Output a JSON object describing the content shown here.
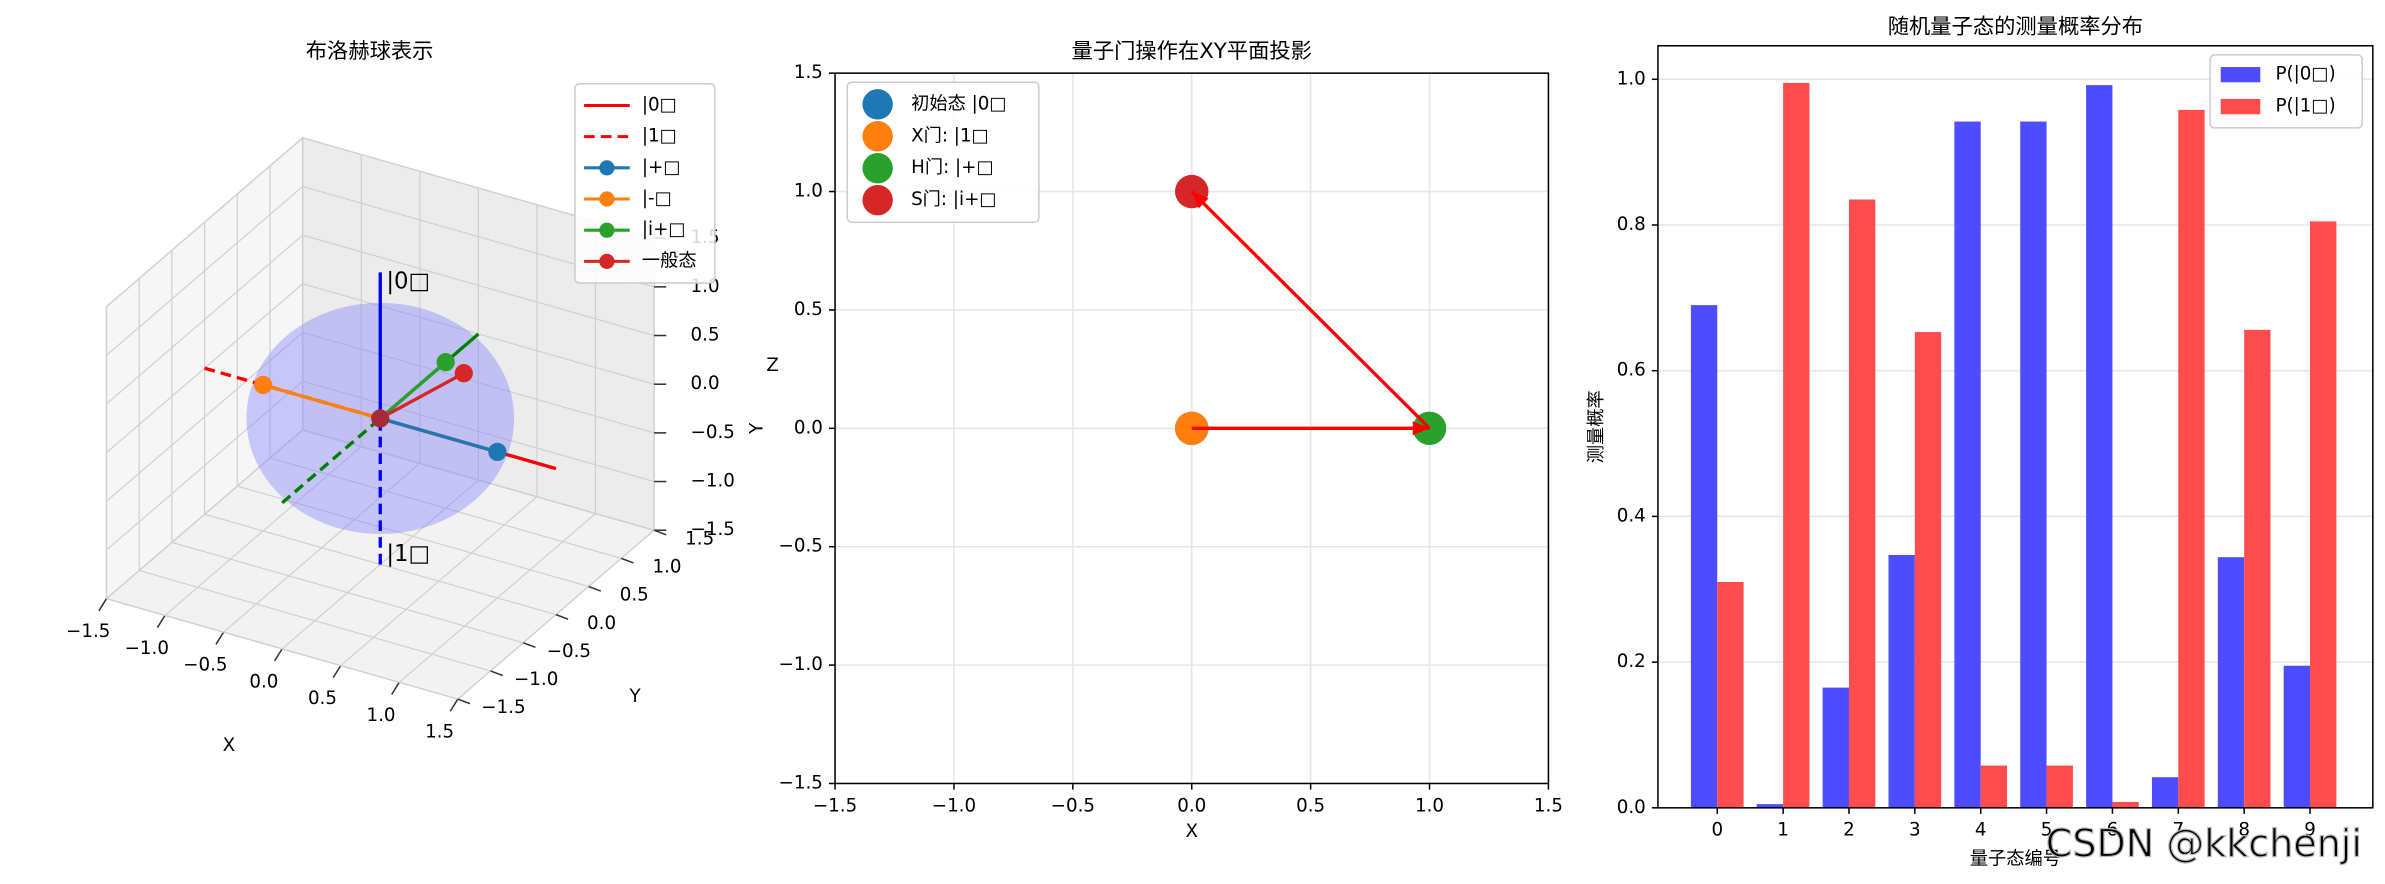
{
  "chart_data": [
    {
      "type": "bloch3d",
      "title": "布洛赫球表示",
      "xlabel": "X",
      "ylabel": "Y",
      "zlabel": "Z",
      "xlim": [
        -1.5,
        1.5
      ],
      "ylim": [
        -1.5,
        1.5
      ],
      "zlim": [
        -1.5,
        1.5
      ],
      "xticks": [
        {
          "value": -1.5,
          "label": "−1.5"
        },
        {
          "value": -1.0,
          "label": "−1.0"
        },
        {
          "value": -0.5,
          "label": "−0.5"
        },
        {
          "value": 0,
          "label": "0.0"
        },
        0.5,
        {
          "value": 1,
          "label": "1.0"
        },
        1.5
      ],
      "yticks": [
        {
          "value": -1.5,
          "label": "−1.5"
        },
        {
          "value": -1.0,
          "label": "−1.0"
        },
        {
          "value": -0.5,
          "label": "−0.5"
        },
        {
          "value": 0,
          "label": "0.0"
        },
        0.5,
        {
          "value": 1,
          "label": "1.0"
        },
        1.5
      ],
      "zticks": [
        {
          "value": -1.5,
          "label": "−1.5"
        },
        {
          "value": -1.0,
          "label": "−1.0"
        },
        {
          "value": -0.5,
          "label": "−0.5"
        },
        {
          "value": 0,
          "label": "0.0"
        },
        0.5,
        {
          "value": 1,
          "label": "1.0"
        },
        1.5
      ],
      "sphere_color": "#8080ff",
      "legend": "upper right",
      "series": [
        {
          "name": "|0□",
          "color": "#ff0000",
          "linestyle": "solid",
          "marker": false,
          "x": [
            0,
            1.5
          ],
          "y": [
            0,
            0
          ],
          "z": [
            0,
            0
          ]
        },
        {
          "name": "|1□",
          "color": "#ff0000",
          "linestyle": "dashed",
          "marker": false,
          "x": [
            -1.5,
            0
          ],
          "y": [
            0,
            0
          ],
          "z": [
            0,
            0
          ]
        },
        {
          "name": "|+□",
          "color": "#1f77b4",
          "linestyle": "solid",
          "marker": true,
          "x": [
            0,
            1
          ],
          "y": [
            0,
            0
          ],
          "z": [
            0,
            0
          ]
        },
        {
          "name": "|-□",
          "color": "#ff7f0e",
          "linestyle": "solid",
          "marker": true,
          "x": [
            0,
            -1
          ],
          "y": [
            0,
            0
          ],
          "z": [
            0,
            0
          ]
        },
        {
          "name": "|i+□",
          "color": "#2ca02c",
          "linestyle": "solid",
          "marker": true,
          "x": [
            0,
            0
          ],
          "y": [
            0,
            1
          ],
          "z": [
            0,
            0
          ]
        },
        {
          "name": "一般态",
          "color": "#d62728",
          "linestyle": "solid",
          "marker": true,
          "x": [
            0,
            0.3
          ],
          "y": [
            0,
            0.74
          ],
          "z": [
            0,
            0.14
          ]
        }
      ],
      "axis_lines": [
        {
          "color": "#008000",
          "linestyle": "solid",
          "x": [
            0,
            0
          ],
          "y": [
            0,
            1.5
          ],
          "z": [
            0,
            0
          ]
        },
        {
          "color": "#008000",
          "linestyle": "dashed",
          "x": [
            0,
            0
          ],
          "y": [
            -1.5,
            0
          ],
          "z": [
            0,
            0
          ]
        },
        {
          "color": "#0000ff",
          "linestyle": "solid",
          "x": [
            0,
            0
          ],
          "y": [
            0,
            0
          ],
          "z": [
            0,
            1.5
          ]
        },
        {
          "color": "#0000ff",
          "linestyle": "dashed",
          "x": [
            0,
            0
          ],
          "y": [
            0,
            0
          ],
          "z": [
            -1.5,
            0
          ]
        }
      ],
      "annotations": [
        {
          "text": "|0□",
          "color": "#ff0000",
          "x": 0,
          "y": 0,
          "z": 1.4
        },
        {
          "text": "|1□",
          "color": "#ff0000",
          "x": 0,
          "y": 0,
          "z": -1.4
        }
      ]
    },
    {
      "type": "scatter",
      "title": "量子门操作在XY平面投影",
      "xlabel": "X",
      "ylabel": "Y",
      "xlim": [
        -1.5,
        1.5
      ],
      "ylim": [
        -1.5,
        1.5
      ],
      "xticks": [
        {
          "value": -1.5,
          "label": "−1.5"
        },
        {
          "value": -1.0,
          "label": "−1.0"
        },
        {
          "value": -0.5,
          "label": "−0.5"
        },
        {
          "value": 0,
          "label": "0.0"
        },
        0.5,
        {
          "value": 1,
          "label": "1.0"
        },
        1.5
      ],
      "yticks": [
        {
          "value": -1.5,
          "label": "−1.5"
        },
        {
          "value": -1.0,
          "label": "−1.0"
        },
        {
          "value": -0.5,
          "label": "−0.5"
        },
        {
          "value": 0,
          "label": "0.0"
        },
        0.5,
        {
          "value": 1,
          "label": "1.0"
        },
        1.5
      ],
      "grid": true,
      "legend": "upper left",
      "series": [
        {
          "name": "初始态 |0□",
          "color": "#1f77b4",
          "x": [
            0
          ],
          "y": [
            0
          ]
        },
        {
          "name": "X门: |1□",
          "color": "#ff7f0e",
          "x": [
            0
          ],
          "y": [
            0
          ]
        },
        {
          "name": "H门: |+□",
          "color": "#2ca02c",
          "x": [
            1
          ],
          "y": [
            0
          ]
        },
        {
          "name": "S门: |i+□",
          "color": "#d62728",
          "x": [
            0
          ],
          "y": [
            1
          ]
        }
      ],
      "arrows": [
        {
          "color": "#ff0000",
          "x": [
            0,
            1
          ],
          "y": [
            0,
            0
          ]
        },
        {
          "color": "#ff0000",
          "x": [
            1,
            0
          ],
          "y": [
            0,
            1
          ]
        }
      ]
    },
    {
      "type": "grouped_bar",
      "title": "随机量子态的测量概率分布",
      "xlabel": "量子态编号",
      "ylabel": "测量概率",
      "categories": [
        "0",
        "1",
        "2",
        "3",
        "4",
        "5",
        "6",
        "7",
        "8",
        "9"
      ],
      "ylim": [
        0,
        1.046
      ],
      "yticks": [
        {
          "value": 0,
          "label": "0.0"
        },
        0.2,
        0.4,
        0.6,
        0.8,
        {
          "value": 1,
          "label": "1.0"
        }
      ],
      "grid": true,
      "legend": "upper right",
      "series": [
        {
          "name": "P(|0□)",
          "color": "#4d4dff",
          "values": [
            0.69,
            0.005,
            0.165,
            0.347,
            0.942,
            0.942,
            0.992,
            0.042,
            0.344,
            0.195
          ]
        },
        {
          "name": "P(|1□)",
          "color": "#ff4d4d",
          "values": [
            0.31,
            0.995,
            0.835,
            0.653,
            0.058,
            0.058,
            0.008,
            0.958,
            0.656,
            0.805
          ]
        }
      ]
    }
  ],
  "watermark": "CSDN @kkchenji"
}
